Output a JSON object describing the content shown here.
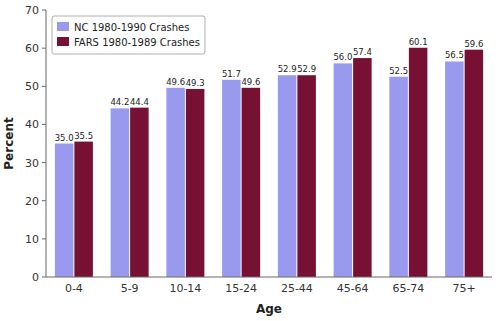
{
  "chart_data": {
    "type": "bar",
    "x_label": "Age",
    "y_label": "Percent",
    "categories": [
      "0-4",
      "5-9",
      "10-14",
      "15-24",
      "25-44",
      "45-64",
      "65-74",
      "75+"
    ],
    "series": [
      {
        "name": "NC 1980-1990 Crashes",
        "color": "#9999ee",
        "values": [
          35.0,
          44.2,
          49.6,
          51.7,
          52.9,
          56.0,
          52.5,
          56.5
        ],
        "value_labels": [
          "35.0",
          "44.2",
          "49.6",
          "51.7",
          "52.9",
          "56.0",
          "52.5",
          "56.5"
        ]
      },
      {
        "name": "FARS 1980-1989 Crashes",
        "color": "#771133",
        "values": [
          35.5,
          44.4,
          49.3,
          49.6,
          52.9,
          57.4,
          60.1,
          59.6
        ],
        "value_labels": [
          "35.5",
          "44.4",
          "49.3",
          "49.6",
          "52.9",
          "57.4",
          "60.1",
          "59.6"
        ]
      }
    ],
    "ylim": [
      0,
      70
    ],
    "yticks": [
      0,
      10,
      20,
      30,
      40,
      50,
      60,
      70
    ],
    "grid": false,
    "legend": "upper left",
    "data_labels": true
  }
}
